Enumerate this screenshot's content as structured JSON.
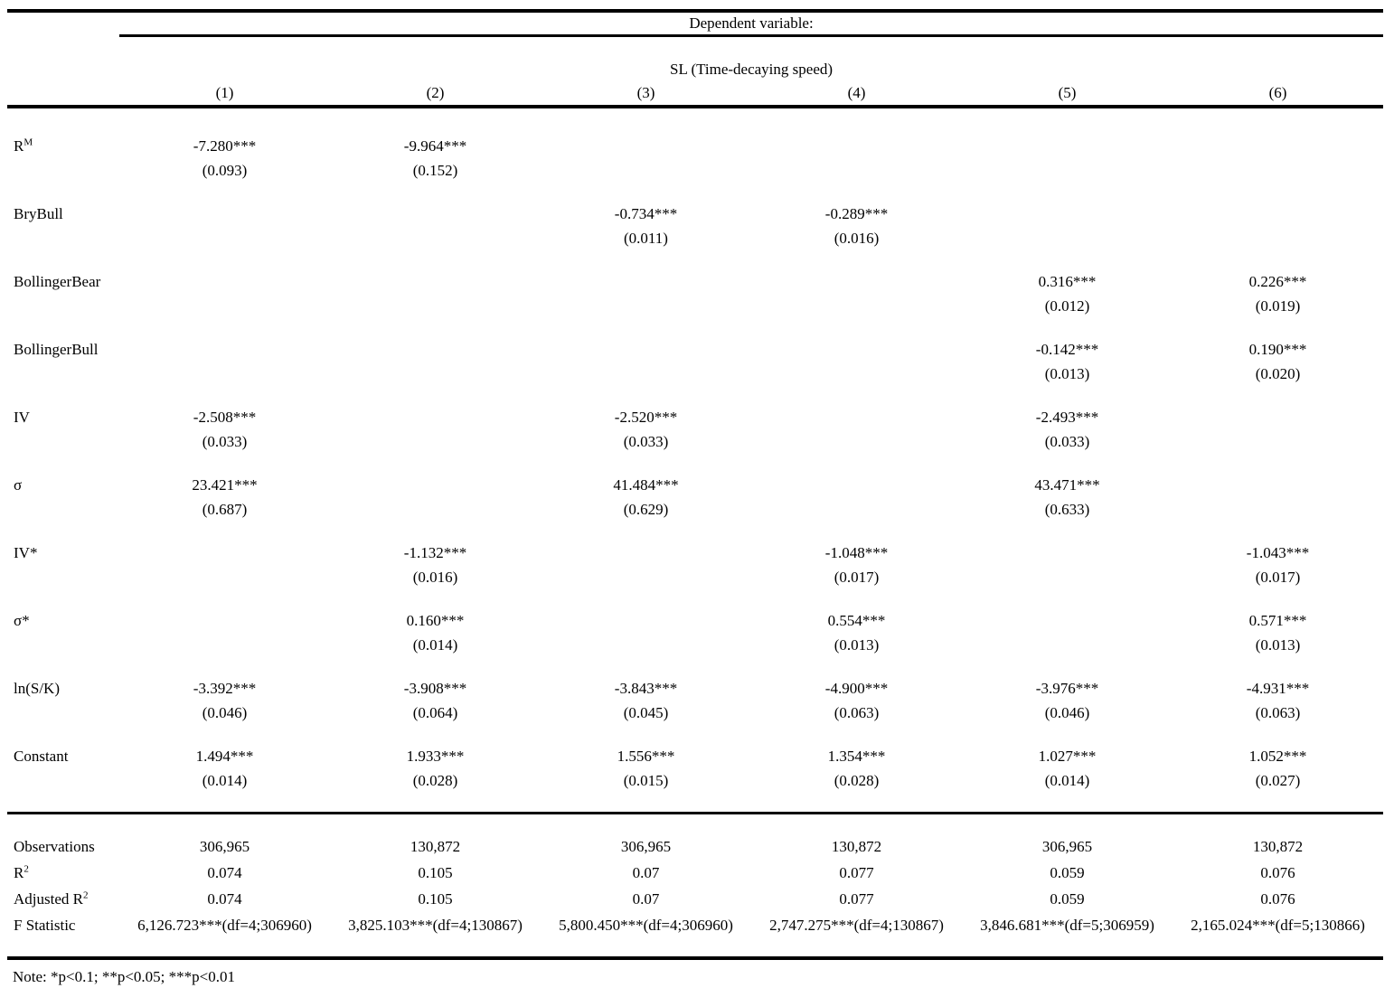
{
  "table": {
    "dependent_variable_label": "Dependent variable:",
    "dependent_variable_name": "SL (Time-decaying speed)",
    "columns": [
      "(1)",
      "(2)",
      "(3)",
      "(4)",
      "(5)",
      "(6)"
    ],
    "coefficients": [
      {
        "label": "R",
        "label_sup": "M",
        "cells": [
          {
            "est": "-7.280***",
            "se": "(0.093)"
          },
          {
            "est": "-9.964***",
            "se": "(0.152)"
          },
          null,
          null,
          null,
          null
        ]
      },
      {
        "label": "BryBull",
        "cells": [
          null,
          null,
          {
            "est": "-0.734***",
            "se": "(0.011)"
          },
          {
            "est": "-0.289***",
            "se": "(0.016)"
          },
          null,
          null
        ]
      },
      {
        "label": "BollingerBear",
        "cells": [
          null,
          null,
          null,
          null,
          {
            "est": "0.316***",
            "se": "(0.012)"
          },
          {
            "est": "0.226***",
            "se": "(0.019)"
          }
        ]
      },
      {
        "label": "BollingerBull",
        "cells": [
          null,
          null,
          null,
          null,
          {
            "est": "-0.142***",
            "se": "(0.013)"
          },
          {
            "est": "0.190***",
            "se": "(0.020)"
          }
        ]
      },
      {
        "label": "IV",
        "cells": [
          {
            "est": "-2.508***",
            "se": "(0.033)"
          },
          null,
          {
            "est": "-2.520***",
            "se": "(0.033)"
          },
          null,
          {
            "est": "-2.493***",
            "se": "(0.033)"
          },
          null
        ]
      },
      {
        "label": "σ",
        "cells": [
          {
            "est": "23.421***",
            "se": "(0.687)"
          },
          null,
          {
            "est": "41.484***",
            "se": "(0.629)"
          },
          null,
          {
            "est": "43.471***",
            "se": "(0.633)"
          },
          null
        ]
      },
      {
        "label": "IV*",
        "cells": [
          null,
          {
            "est": "-1.132***",
            "se": "(0.016)"
          },
          null,
          {
            "est": "-1.048***",
            "se": "(0.017)"
          },
          null,
          {
            "est": "-1.043***",
            "se": "(0.017)"
          }
        ]
      },
      {
        "label": "σ*",
        "cells": [
          null,
          {
            "est": "0.160***",
            "se": "(0.014)"
          },
          null,
          {
            "est": "0.554***",
            "se": "(0.013)"
          },
          null,
          {
            "est": "0.571***",
            "se": "(0.013)"
          }
        ]
      },
      {
        "label": "ln(S/K)",
        "cells": [
          {
            "est": "-3.392***",
            "se": "(0.046)"
          },
          {
            "est": "-3.908***",
            "se": "(0.064)"
          },
          {
            "est": "-3.843***",
            "se": "(0.045)"
          },
          {
            "est": "-4.900***",
            "se": "(0.063)"
          },
          {
            "est": "-3.976***",
            "se": "(0.046)"
          },
          {
            "est": "-4.931***",
            "se": "(0.063)"
          }
        ]
      },
      {
        "label": "Constant",
        "cells": [
          {
            "est": "1.494***",
            "se": "(0.014)"
          },
          {
            "est": "1.933***",
            "se": "(0.028)"
          },
          {
            "est": "1.556***",
            "se": "(0.015)"
          },
          {
            "est": "1.354***",
            "se": "(0.028)"
          },
          {
            "est": "1.027***",
            "se": "(0.014)"
          },
          {
            "est": "1.052***",
            "se": "(0.027)"
          }
        ]
      }
    ],
    "stats": [
      {
        "label": "Observations",
        "values": [
          "306,965",
          "130,872",
          "306,965",
          "130,872",
          "306,965",
          "130,872"
        ]
      },
      {
        "label": "R",
        "label_sup": "2",
        "values": [
          "0.074",
          "0.105",
          "0.07",
          "0.077",
          "0.059",
          "0.076"
        ]
      },
      {
        "label": "Adjusted R",
        "label_sup": "2",
        "values": [
          "0.074",
          "0.105",
          "0.07",
          "0.077",
          "0.059",
          "0.076"
        ]
      },
      {
        "label": "F Statistic",
        "values": [
          "6,126.723***(df=4;306960)",
          "3,825.103***(df=4;130867)",
          "5,800.450***(df=4;306960)",
          "2,747.275***(df=4;130867)",
          "3,846.681***(df=5;306959)",
          "2,165.024***(df=5;130866)"
        ]
      }
    ],
    "note": "Note: *p<0.1; **p<0.05; ***p<0.01"
  }
}
